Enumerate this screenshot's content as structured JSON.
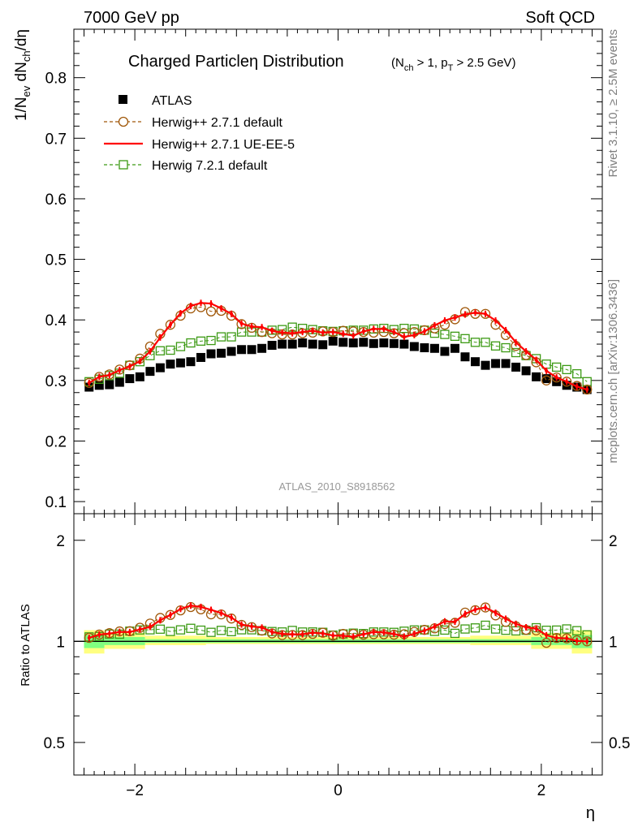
{
  "header": {
    "energy_label": "7000 GeV pp",
    "process_label": "Soft QCD",
    "title_main": "Charged Particleη Distribution",
    "title_sub": "(N",
    "title_sub_ch": "ch",
    "title_sub_mid": " > 1, p",
    "title_sub_T": "T",
    "title_sub_end": " > 2.5 GeV)",
    "ylabel_prefix": "1/N",
    "ylabel_ev": "ev",
    "ylabel_mid": " dN",
    "ylabel_ch": "ch",
    "ylabel_end": "/dη",
    "ratio_ylabel": "Ratio to ATLAS",
    "xlabel": "η",
    "side_rivet": "Rivet 3.1.10, ≥ 2.5M events",
    "side_mcplots": "mcplots.cern.ch [arXiv:1306.3436]",
    "analysis_tag": "ATLAS_2010_S8918562"
  },
  "colors": {
    "atlas": "#000000",
    "herwigpp_default": "#a0580a",
    "herwigpp_ueee5": "#ff0000",
    "herwig7": "#3c9a14",
    "band_yellow": "#ffff80",
    "band_green": "#80ff80"
  },
  "chart_data": {
    "type": "scatter",
    "x": [
      -2.45,
      -2.35,
      -2.25,
      -2.15,
      -2.05,
      -1.95,
      -1.85,
      -1.75,
      -1.65,
      -1.55,
      -1.45,
      -1.35,
      -1.25,
      -1.15,
      -1.05,
      -0.95,
      -0.85,
      -0.75,
      -0.65,
      -0.55,
      -0.45,
      -0.35,
      -0.25,
      -0.15,
      -0.05,
      0.05,
      0.15,
      0.25,
      0.35,
      0.45,
      0.55,
      0.65,
      0.75,
      0.85,
      0.95,
      1.05,
      1.15,
      1.25,
      1.35,
      1.45,
      1.55,
      1.65,
      1.75,
      1.85,
      1.95,
      2.05,
      2.15,
      2.25,
      2.35,
      2.45
    ],
    "xlim": [
      -2.6,
      2.6
    ],
    "xticks": [
      -2,
      0,
      2
    ],
    "xtick_labels": [
      "−2",
      "0",
      "2"
    ],
    "main_ylim": [
      0.08,
      0.88
    ],
    "main_yticks": [
      0.1,
      0.2,
      0.3,
      0.4,
      0.5,
      0.6,
      0.7,
      0.8
    ],
    "ratio_ylim": [
      0.4,
      2.4
    ],
    "ratio_ylog": true,
    "ratio_yticks": [
      0.5,
      1,
      2
    ],
    "legend_position": "top-left",
    "series": [
      {
        "name": "ATLAS",
        "marker": "filled-square",
        "values": [
          0.289,
          0.292,
          0.293,
          0.297,
          0.303,
          0.306,
          0.315,
          0.321,
          0.327,
          0.329,
          0.331,
          0.338,
          0.344,
          0.345,
          0.348,
          0.351,
          0.351,
          0.353,
          0.358,
          0.36,
          0.36,
          0.362,
          0.36,
          0.359,
          0.365,
          0.363,
          0.362,
          0.363,
          0.361,
          0.362,
          0.361,
          0.36,
          0.356,
          0.354,
          0.353,
          0.348,
          0.353,
          0.339,
          0.331,
          0.325,
          0.328,
          0.328,
          0.322,
          0.316,
          0.306,
          0.303,
          0.298,
          0.292,
          0.289,
          0.285
        ]
      },
      {
        "name": "Herwig++ 2.7.1 default",
        "marker": "open-circle",
        "values": [
          0.296,
          0.306,
          0.31,
          0.318,
          0.325,
          0.336,
          0.356,
          0.377,
          0.392,
          0.407,
          0.419,
          0.421,
          0.414,
          0.415,
          0.407,
          0.393,
          0.387,
          0.38,
          0.378,
          0.376,
          0.376,
          0.378,
          0.379,
          0.381,
          0.38,
          0.382,
          0.381,
          0.38,
          0.379,
          0.38,
          0.378,
          0.378,
          0.38,
          0.383,
          0.386,
          0.392,
          0.401,
          0.413,
          0.41,
          0.41,
          0.392,
          0.375,
          0.357,
          0.342,
          0.33,
          0.3,
          0.305,
          0.298,
          0.291,
          0.285
        ]
      },
      {
        "name": "Herwig++ 2.7.1 UE-EE-5",
        "marker": "line",
        "values": [
          0.296,
          0.306,
          0.309,
          0.317,
          0.323,
          0.332,
          0.348,
          0.371,
          0.392,
          0.411,
          0.423,
          0.428,
          0.427,
          0.419,
          0.41,
          0.394,
          0.389,
          0.388,
          0.382,
          0.379,
          0.378,
          0.38,
          0.382,
          0.379,
          0.38,
          0.377,
          0.374,
          0.381,
          0.385,
          0.385,
          0.38,
          0.372,
          0.375,
          0.381,
          0.391,
          0.399,
          0.404,
          0.409,
          0.412,
          0.41,
          0.399,
          0.383,
          0.363,
          0.348,
          0.334,
          0.316,
          0.305,
          0.298,
          0.29,
          0.285
        ]
      },
      {
        "name": "Herwig 7.2.1 default",
        "marker": "open-square",
        "values": [
          0.298,
          0.302,
          0.308,
          0.312,
          0.325,
          0.331,
          0.341,
          0.349,
          0.35,
          0.356,
          0.362,
          0.365,
          0.366,
          0.372,
          0.372,
          0.38,
          0.38,
          0.38,
          0.383,
          0.384,
          0.388,
          0.386,
          0.384,
          0.382,
          0.381,
          0.382,
          0.383,
          0.383,
          0.385,
          0.386,
          0.384,
          0.386,
          0.385,
          0.383,
          0.378,
          0.376,
          0.373,
          0.369,
          0.363,
          0.363,
          0.357,
          0.354,
          0.346,
          0.341,
          0.336,
          0.327,
          0.322,
          0.318,
          0.311,
          0.298
        ]
      }
    ],
    "bands": {
      "yellow": [
        {
          "x0": -2.5,
          "x1": -2.3,
          "lo": 0.92,
          "hi": 1.08
        },
        {
          "x0": -2.3,
          "x1": -1.9,
          "lo": 0.95,
          "hi": 1.06
        },
        {
          "x0": -1.9,
          "x1": -1.3,
          "lo": 0.975,
          "hi": 1.04
        },
        {
          "x0": -1.3,
          "x1": 1.3,
          "lo": 0.982,
          "hi": 1.03
        },
        {
          "x0": 1.3,
          "x1": 1.9,
          "lo": 0.975,
          "hi": 1.04
        },
        {
          "x0": 1.9,
          "x1": 2.3,
          "lo": 0.95,
          "hi": 1.06
        },
        {
          "x0": 2.3,
          "x1": 2.5,
          "lo": 0.92,
          "hi": 1.08
        }
      ],
      "green": [
        {
          "x0": -2.5,
          "x1": -2.3,
          "lo": 0.955,
          "hi": 1.045
        },
        {
          "x0": -2.3,
          "x1": -1.9,
          "lo": 0.975,
          "hi": 1.03
        },
        {
          "x0": -1.9,
          "x1": 1.9,
          "lo": 0.99,
          "hi": 1.015
        },
        {
          "x0": 1.9,
          "x1": 2.3,
          "lo": 0.975,
          "hi": 1.03
        },
        {
          "x0": 2.3,
          "x1": 2.5,
          "lo": 0.955,
          "hi": 1.045
        }
      ]
    }
  }
}
